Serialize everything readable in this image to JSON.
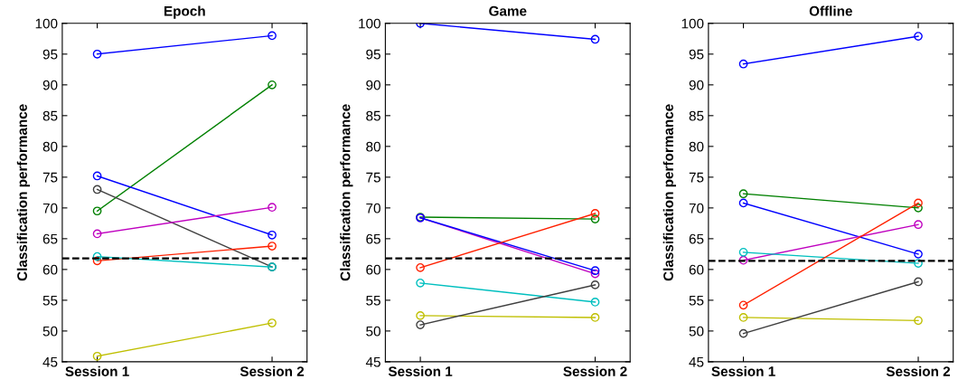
{
  "chart_data": [
    {
      "type": "line",
      "title": "Epoch",
      "ylabel": "Classification performance",
      "categories": [
        "Session 1",
        "Session 2"
      ],
      "ylim": [
        45,
        100
      ],
      "yticks": [
        45,
        50,
        55,
        60,
        65,
        70,
        75,
        80,
        85,
        90,
        95,
        100
      ],
      "marker": "circle",
      "line_style": "solid",
      "ref_lines": [
        {
          "axis": "y",
          "value": 61.8,
          "color": "#000000",
          "line_style": "dashed"
        }
      ],
      "series": [
        {
          "color": "#0000ff",
          "values": [
            95,
            98
          ]
        },
        {
          "color": "#008000",
          "values": [
            69.5,
            90
          ]
        },
        {
          "color": "#0000ff",
          "values": [
            75.2,
            65.6
          ]
        },
        {
          "color": "#404040",
          "values": [
            73,
            60.4
          ]
        },
        {
          "color": "#bf00bf",
          "values": [
            65.8,
            70.1
          ]
        },
        {
          "color": "#ff2000",
          "values": [
            61.4,
            63.8
          ]
        },
        {
          "color": "#00bfbf",
          "values": [
            62.1,
            60.4
          ]
        },
        {
          "color": "#bfbf00",
          "values": [
            45.9,
            51.3
          ]
        }
      ]
    },
    {
      "type": "line",
      "title": "Game",
      "ylabel": "Classification performance",
      "categories": [
        "Session 1",
        "Session 2"
      ],
      "ylim": [
        45,
        100
      ],
      "yticks": [
        45,
        50,
        55,
        60,
        65,
        70,
        75,
        80,
        85,
        90,
        95,
        100
      ],
      "marker": "circle",
      "line_style": "solid",
      "ref_lines": [
        {
          "axis": "y",
          "value": 61.8,
          "color": "#000000",
          "line_style": "dashed"
        }
      ],
      "series": [
        {
          "color": "#0000ff",
          "values": [
            100,
            97.4
          ]
        },
        {
          "color": "#008000",
          "values": [
            68.5,
            68.2
          ]
        },
        {
          "color": "#bf00bf",
          "values": [
            68.4,
            59.3
          ]
        },
        {
          "color": "#0000ff",
          "values": [
            68.4,
            59.8
          ]
        },
        {
          "color": "#ff2000",
          "values": [
            60.3,
            69.1
          ]
        },
        {
          "color": "#00bfbf",
          "values": [
            57.8,
            54.7
          ]
        },
        {
          "color": "#bfbf00",
          "values": [
            52.5,
            52.2
          ]
        },
        {
          "color": "#404040",
          "values": [
            51,
            57.5
          ]
        }
      ]
    },
    {
      "type": "line",
      "title": "Offline",
      "ylabel": "Classification performance",
      "categories": [
        "Session 1",
        "Session 2"
      ],
      "ylim": [
        45,
        100
      ],
      "yticks": [
        45,
        50,
        55,
        60,
        65,
        70,
        75,
        80,
        85,
        90,
        95,
        100
      ],
      "marker": "circle",
      "line_style": "solid",
      "ref_lines": [
        {
          "axis": "y",
          "value": 61.4,
          "color": "#000000",
          "line_style": "dashed"
        }
      ],
      "series": [
        {
          "color": "#0000ff",
          "values": [
            93.4,
            97.9
          ]
        },
        {
          "color": "#008000",
          "values": [
            72.3,
            70
          ]
        },
        {
          "color": "#0000ff",
          "values": [
            70.8,
            62.5
          ]
        },
        {
          "color": "#bf00bf",
          "values": [
            61.5,
            67.3
          ]
        },
        {
          "color": "#00bfbf",
          "values": [
            62.8,
            61
          ]
        },
        {
          "color": "#ff2000",
          "values": [
            54.2,
            70.8
          ]
        },
        {
          "color": "#bfbf00",
          "values": [
            52.2,
            51.7
          ]
        },
        {
          "color": "#404040",
          "values": [
            49.6,
            58
          ]
        }
      ]
    }
  ]
}
